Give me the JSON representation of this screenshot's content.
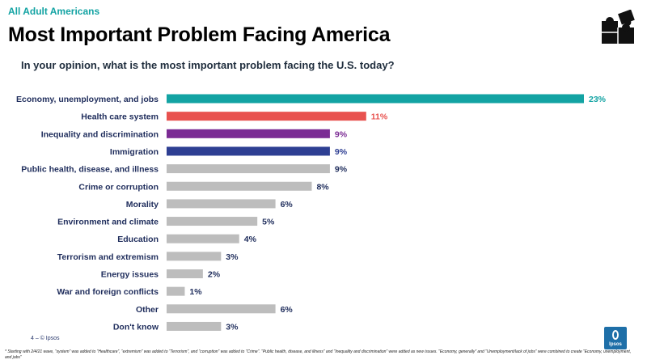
{
  "header": {
    "eyebrow": "All Adult Americans",
    "title": "Most Important Problem Facing America",
    "question": "In your opinion, what is the most important problem facing the U.S. today?"
  },
  "footer": {
    "page": "4 –  © Ipsos",
    "footnote": "* Starting with 2/4/21 wave, “system” was added to “Healthcare”, “extremism” was added to “Terrorism”, and “corruption” was added to “Crime”. “Public health, disease, and illness” and “Inequality and discrimination” were added as new issues. “Economy, generally” and “Unemployment/lack of jobs” were combined to create “Economy, unemployment, and jobs”",
    "logo_text": "Ipsos"
  },
  "icons": {
    "puzzle": "puzzle-icon",
    "logo": "ipsos-logo-icon"
  },
  "colors": {
    "teal": "#13a3a3",
    "red": "#e8524f",
    "purple": "#7b2b94",
    "navy": "#2e3f93",
    "gray": "#bdbdbd",
    "label": "#1f2d5c"
  },
  "chart_data": {
    "type": "bar",
    "orientation": "horizontal",
    "categories": [
      "Economy, unemployment, and jobs",
      "Health care system",
      "Inequality and discrimination",
      "Immigration",
      "Public health, disease, and illness",
      "Crime or corruption",
      "Morality",
      "Environment and climate",
      "Education",
      "Terrorism and extremism",
      "Energy issues",
      "War and foreign conflicts",
      "Other",
      "Don't know"
    ],
    "values": [
      23,
      11,
      9,
      9,
      9,
      8,
      6,
      5,
      4,
      3,
      2,
      1,
      6,
      3
    ],
    "value_labels": [
      "23%",
      "11%",
      "9%",
      "9%",
      "9%",
      "8%",
      "6%",
      "5%",
      "4%",
      "3%",
      "2%",
      "1%",
      "6%",
      "3%"
    ],
    "bar_colors": [
      "#13a3a3",
      "#e8524f",
      "#7b2b94",
      "#2e3f93",
      "#bdbdbd",
      "#bdbdbd",
      "#bdbdbd",
      "#bdbdbd",
      "#bdbdbd",
      "#bdbdbd",
      "#bdbdbd",
      "#bdbdbd",
      "#bdbdbd",
      "#bdbdbd"
    ],
    "label_colors": [
      "#13a3a3",
      "#e8524f",
      "#7b2b94",
      "#2e3f93",
      "#1f2d5c",
      "#1f2d5c",
      "#1f2d5c",
      "#1f2d5c",
      "#1f2d5c",
      "#1f2d5c",
      "#1f2d5c",
      "#1f2d5c",
      "#1f2d5c",
      "#1f2d5c"
    ],
    "xlim": [
      0,
      23
    ],
    "grid": false,
    "legend": "none"
  }
}
